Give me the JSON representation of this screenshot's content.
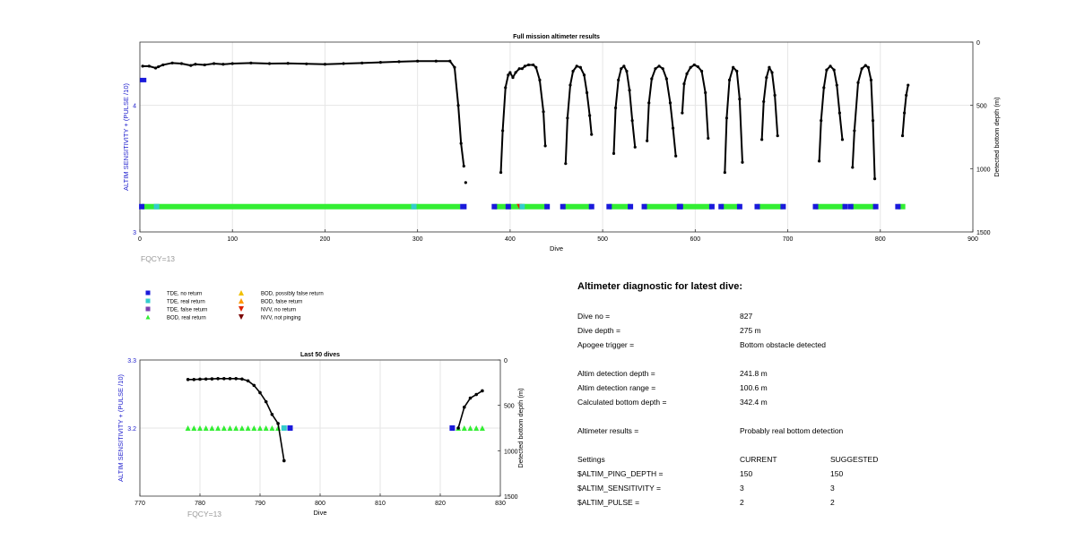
{
  "colors": {
    "tde_no_return": "#1a1adb",
    "tde_real_return": "#33cccc",
    "tde_false_return": "#7a3fb0",
    "bod_real_return": "#33ee33",
    "bod_possibly_false": "#f0c000",
    "bod_false_return": "#ff9900",
    "nvv_no_return": "#dd2200",
    "nvv_not_pinging": "#7a0000",
    "sensitivity_axis": "#1a1acc",
    "fqcy_text": "#999999"
  },
  "chart_data": [
    {
      "type": "scatter",
      "title": "Full mission altimeter results",
      "xlabel": "Dive",
      "ylabel": "ALTIM SENSITIVITY + (PULSE /10)",
      "ylabel_right": "Detected bottom depth (m)",
      "xlim": [
        0,
        900
      ],
      "ylim": [
        3,
        4.5
      ],
      "ylim_right": [
        1500,
        0
      ],
      "xticks": [
        "0",
        "100",
        "200",
        "300",
        "400",
        "500",
        "600",
        "700",
        "800",
        "900"
      ],
      "yticks": [
        "3",
        "4"
      ],
      "yticks_right": [
        "0",
        "500",
        "1000",
        "1500"
      ],
      "grid": true,
      "note": "FQCY=13",
      "settings_marker": {
        "x": [
          0,
          7
        ],
        "y": [
          4.2,
          4.2
        ]
      },
      "bottom_depth_segments": [
        {
          "x": [
            3,
            10,
            17,
            20,
            25,
            35,
            45,
            55,
            60,
            70,
            80,
            90,
            100,
            120,
            140,
            160,
            180,
            200,
            220,
            240,
            260,
            280,
            300,
            320,
            335,
            340,
            344,
            347,
            350
          ],
          "y": [
            190,
            190,
            205,
            195,
            180,
            165,
            170,
            185,
            175,
            180,
            170,
            175,
            170,
            165,
            170,
            168,
            172,
            175,
            170,
            165,
            160,
            155,
            150,
            150,
            150,
            200,
            500,
            800,
            980
          ]
        },
        {
          "x": [
            352
          ],
          "y": [
            1110
          ]
        },
        {
          "x": [
            390,
            392,
            395,
            398,
            400,
            403,
            406,
            410,
            413,
            416,
            420,
            425,
            428,
            432,
            436,
            438
          ],
          "y": [
            1030,
            700,
            360,
            260,
            240,
            280,
            240,
            210,
            210,
            190,
            180,
            180,
            200,
            300,
            550,
            820
          ]
        },
        {
          "x": [
            460,
            462,
            465,
            468,
            472,
            476,
            480,
            483,
            486,
            488
          ],
          "y": [
            960,
            600,
            340,
            230,
            190,
            200,
            260,
            400,
            580,
            730
          ]
        },
        {
          "x": [
            512,
            514,
            517,
            520,
            523,
            526,
            529,
            532,
            535
          ],
          "y": [
            880,
            520,
            300,
            210,
            190,
            230,
            380,
            620,
            830
          ]
        },
        {
          "x": [
            548,
            550,
            553,
            557,
            561,
            565,
            569,
            573,
            576,
            579
          ],
          "y": [
            780,
            480,
            290,
            210,
            190,
            210,
            290,
            480,
            680,
            900
          ]
        },
        {
          "x": [
            586,
            588,
            591,
            595,
            599,
            603,
            607,
            611,
            614
          ],
          "y": [
            560,
            330,
            250,
            200,
            180,
            195,
            230,
            400,
            760
          ]
        },
        {
          "x": [
            632,
            634,
            637,
            641,
            645,
            648,
            651
          ],
          "y": [
            1030,
            600,
            300,
            200,
            230,
            450,
            950
          ]
        },
        {
          "x": [
            672,
            674,
            677,
            680,
            683,
            686,
            689
          ],
          "y": [
            770,
            470,
            280,
            200,
            240,
            420,
            740
          ]
        },
        {
          "x": [
            734,
            736,
            739,
            742,
            746,
            750,
            753,
            756,
            759
          ],
          "y": [
            940,
            620,
            360,
            220,
            190,
            220,
            340,
            560,
            770
          ]
        },
        {
          "x": [
            770,
            772,
            776,
            780,
            784,
            787,
            790,
            792,
            794
          ],
          "y": [
            990,
            700,
            320,
            210,
            185,
            200,
            300,
            620,
            1080
          ]
        },
        {
          "x": [
            824,
            826,
            828,
            830
          ],
          "y": [
            740,
            560,
            420,
            340
          ]
        }
      ],
      "status_row_y": 3.2,
      "status_intervals": [
        {
          "from": 2,
          "to": 346,
          "kind": "bod_real_return"
        },
        {
          "from": 346,
          "to": 353,
          "kind": "tde_no_return"
        },
        {
          "from": 383,
          "to": 440,
          "kind": "bod_real_return"
        },
        {
          "from": 457,
          "to": 488,
          "kind": "bod_real_return"
        },
        {
          "from": 507,
          "to": 530,
          "kind": "bod_real_return"
        },
        {
          "from": 545,
          "to": 583,
          "kind": "bod_real_return"
        },
        {
          "from": 584,
          "to": 618,
          "kind": "bod_real_return"
        },
        {
          "from": 628,
          "to": 648,
          "kind": "bod_real_return"
        },
        {
          "from": 667,
          "to": 695,
          "kind": "bod_real_return"
        },
        {
          "from": 730,
          "to": 762,
          "kind": "bod_real_return"
        },
        {
          "from": 768,
          "to": 795,
          "kind": "bod_real_return"
        },
        {
          "from": 819,
          "to": 827,
          "kind": "bod_real_return"
        }
      ],
      "status_points": [
        {
          "x": 2,
          "kind": "tde_no_return"
        },
        {
          "x": 18,
          "kind": "tde_real_return"
        },
        {
          "x": 296,
          "kind": "tde_real_return"
        },
        {
          "x": 383,
          "kind": "tde_no_return"
        },
        {
          "x": 398,
          "kind": "tde_no_return"
        },
        {
          "x": 410,
          "kind": "nvv_no_return"
        },
        {
          "x": 413,
          "kind": "tde_real_return"
        },
        {
          "x": 440,
          "kind": "tde_no_return"
        },
        {
          "x": 457,
          "kind": "tde_no_return"
        },
        {
          "x": 488,
          "kind": "tde_no_return"
        },
        {
          "x": 507,
          "kind": "tde_no_return"
        },
        {
          "x": 530,
          "kind": "tde_no_return"
        },
        {
          "x": 545,
          "kind": "tde_no_return"
        },
        {
          "x": 583,
          "kind": "tde_no_return"
        },
        {
          "x": 584,
          "kind": "tde_no_return"
        },
        {
          "x": 618,
          "kind": "tde_no_return"
        },
        {
          "x": 628,
          "kind": "tde_no_return"
        },
        {
          "x": 648,
          "kind": "tde_no_return"
        },
        {
          "x": 667,
          "kind": "tde_no_return"
        },
        {
          "x": 695,
          "kind": "tde_no_return"
        },
        {
          "x": 730,
          "kind": "tde_no_return"
        },
        {
          "x": 762,
          "kind": "tde_no_return"
        },
        {
          "x": 768,
          "kind": "tde_no_return"
        },
        {
          "x": 795,
          "kind": "tde_no_return"
        },
        {
          "x": 819,
          "kind": "tde_no_return"
        }
      ]
    },
    {
      "type": "scatter",
      "title": "Last 50 dives",
      "xlabel": "Dive",
      "ylabel": "ALTIM SENSITIVITY + (PULSE /10)",
      "ylabel_right": "Detected bottom depth (m)",
      "xlim": [
        770,
        830
      ],
      "ylim": [
        3.1,
        3.3
      ],
      "ylim_right": [
        1500,
        0
      ],
      "xticks": [
        "770",
        "780",
        "790",
        "800",
        "810",
        "820",
        "830"
      ],
      "yticks": [
        "3.2",
        "3.3"
      ],
      "yticks_right": [
        "0",
        "500",
        "1000",
        "1500"
      ],
      "grid": true,
      "note": "FQCY=13",
      "bottom_depth_segments": [
        {
          "x": [
            778,
            779,
            780,
            781,
            782,
            783,
            784,
            785,
            786,
            787,
            788,
            789,
            790,
            791,
            792,
            793,
            794
          ],
          "y": [
            215,
            215,
            212,
            210,
            208,
            205,
            205,
            205,
            205,
            210,
            230,
            280,
            360,
            460,
            600,
            700,
            1110
          ]
        },
        {
          "x": [
            823,
            824,
            825,
            826,
            827
          ],
          "y": [
            750,
            520,
            420,
            380,
            340
          ]
        }
      ],
      "status_points": [
        {
          "x": 778,
          "kind": "bod_real_return"
        },
        {
          "x": 779,
          "kind": "bod_real_return"
        },
        {
          "x": 780,
          "kind": "bod_real_return"
        },
        {
          "x": 781,
          "kind": "bod_real_return"
        },
        {
          "x": 782,
          "kind": "bod_real_return"
        },
        {
          "x": 783,
          "kind": "bod_real_return"
        },
        {
          "x": 784,
          "kind": "bod_real_return"
        },
        {
          "x": 785,
          "kind": "bod_real_return"
        },
        {
          "x": 786,
          "kind": "bod_real_return"
        },
        {
          "x": 787,
          "kind": "bod_real_return"
        },
        {
          "x": 788,
          "kind": "bod_real_return"
        },
        {
          "x": 789,
          "kind": "bod_real_return"
        },
        {
          "x": 790,
          "kind": "bod_real_return"
        },
        {
          "x": 791,
          "kind": "bod_real_return"
        },
        {
          "x": 792,
          "kind": "bod_real_return"
        },
        {
          "x": 793,
          "kind": "bod_real_return"
        },
        {
          "x": 794,
          "kind": "tde_real_return"
        },
        {
          "x": 795,
          "kind": "tde_no_return"
        },
        {
          "x": 822,
          "kind": "tde_no_return"
        },
        {
          "x": 823,
          "kind": "bod_real_return"
        },
        {
          "x": 824,
          "kind": "bod_real_return"
        },
        {
          "x": 825,
          "kind": "bod_real_return"
        },
        {
          "x": 826,
          "kind": "bod_real_return"
        },
        {
          "x": 827,
          "kind": "bod_real_return"
        }
      ],
      "status_row_y": 3.2
    }
  ],
  "legend": {
    "col1": [
      {
        "label": "TDE, no return",
        "kind": "tde_no_return",
        "marker": "square"
      },
      {
        "label": "TDE, real return",
        "kind": "tde_real_return",
        "marker": "square"
      },
      {
        "label": "TDE, false return",
        "kind": "tde_false_return",
        "marker": "square"
      },
      {
        "label": "BOD, real return",
        "kind": "bod_real_return",
        "marker": "triangle-up"
      }
    ],
    "col2": [
      {
        "label": "BOD, possibly false return",
        "kind": "bod_possibly_false",
        "marker": "triangle-up"
      },
      {
        "label": "BOD, false return",
        "kind": "bod_false_return",
        "marker": "triangle-up"
      },
      {
        "label": "NVV, no return",
        "kind": "nvv_no_return",
        "marker": "triangle-down"
      },
      {
        "label": "NVV, not pinging",
        "kind": "nvv_not_pinging",
        "marker": "triangle-down"
      }
    ]
  },
  "diagnostic": {
    "title": "Altimeter diagnostic for latest dive:",
    "rows": [
      {
        "label": "Dive no =",
        "value": "827"
      },
      {
        "label": "Dive depth =",
        "value": "275 m"
      },
      {
        "label": "Apogee trigger =",
        "value": "Bottom obstacle detected"
      },
      {
        "label": "Altim detection depth =",
        "value": "241.8 m"
      },
      {
        "label": "Altim detection range =",
        "value": "100.6 m"
      },
      {
        "label": "Calculated bottom depth =",
        "value": "342.4 m"
      },
      {
        "label": "Altimeter results =",
        "value": "Probably real bottom detection"
      }
    ],
    "settings": {
      "header": {
        "label": "Settings",
        "current": "CURRENT",
        "suggested": "SUGGESTED"
      },
      "rows": [
        {
          "label": "$ALTIM_PING_DEPTH =",
          "current": "150",
          "suggested": "150"
        },
        {
          "label": "$ALTIM_SENSITIVITY =",
          "current": "3",
          "suggested": "3"
        },
        {
          "label": "$ALTIM_PULSE =",
          "current": "2",
          "suggested": "2"
        }
      ]
    }
  }
}
